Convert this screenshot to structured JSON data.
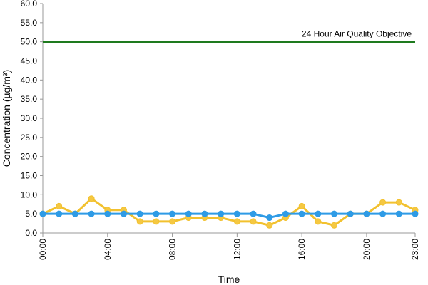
{
  "chart_data": {
    "type": "line",
    "title": "",
    "xlabel": "Time",
    "ylabel": "Concentration (µg/m³)",
    "ylim": [
      0,
      60
    ],
    "yticks": [
      "0.0",
      "5.0",
      "10.0",
      "15.0",
      "20.0",
      "25.0",
      "30.0",
      "35.0",
      "40.0",
      "45.0",
      "50.0",
      "55.0",
      "60.0"
    ],
    "x": [
      0,
      1,
      2,
      3,
      4,
      5,
      6,
      7,
      8,
      9,
      10,
      11,
      12,
      13,
      14,
      15,
      16,
      17,
      18,
      19,
      20,
      21,
      22,
      23
    ],
    "xticks": [
      {
        "value": 0,
        "label": "00:00"
      },
      {
        "value": 4,
        "label": "04:00"
      },
      {
        "value": 8,
        "label": "08:00"
      },
      {
        "value": 12,
        "label": "12:00"
      },
      {
        "value": 16,
        "label": "16:00"
      },
      {
        "value": 20,
        "label": "20:00"
      },
      {
        "value": 23,
        "label": "23:00"
      }
    ],
    "grid": false,
    "legend": "none",
    "series": [
      {
        "color": "#F2C12E",
        "marker_fill": "#F5C842",
        "values": [
          5,
          7,
          5,
          9,
          6,
          6,
          3,
          3,
          3,
          4,
          4,
          4,
          3,
          3,
          2,
          4,
          7,
          3,
          2,
          5,
          5,
          8,
          8,
          6
        ]
      },
      {
        "color": "#2E9BE6",
        "marker_fill": "#2E9BE6",
        "values": [
          5,
          5,
          5,
          5,
          5,
          5,
          5,
          5,
          5,
          5,
          5,
          5,
          5,
          5,
          4,
          5,
          5,
          5,
          5,
          5,
          5,
          5,
          5,
          5
        ]
      }
    ],
    "reference_line": {
      "value": 50,
      "label": "24 Hour Air Quality Objective",
      "color": "#1E7A1E"
    },
    "axis_color": "#999999"
  }
}
